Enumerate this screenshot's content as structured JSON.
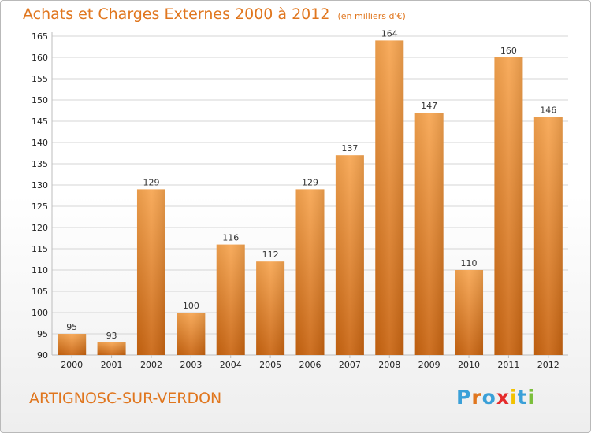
{
  "header": {
    "title": "Achats et Charges Externes 2000 à 2012",
    "subtitle": "(en milliers d'€)"
  },
  "footer": {
    "place": "ARTIGNOSC-SUR-VERDON",
    "logo_text": "Proxiti",
    "logo_colors": [
      "#3aa0d8",
      "#e0761e",
      "#3aa0d8",
      "#e52b2b",
      "#f2c200",
      "#3aa0d8",
      "#7bbf3b"
    ]
  },
  "colors": {
    "bar_top": "#f7a550",
    "bar_bottom": "#c96410",
    "accent": "#e0761e"
  },
  "chart_data": {
    "type": "bar",
    "title": "Achats et Charges Externes 2000 à 2012",
    "subtitle": "(en milliers d'€)",
    "categories": [
      "2000",
      "2001",
      "2002",
      "2003",
      "2004",
      "2005",
      "2006",
      "2007",
      "2008",
      "2009",
      "2010",
      "2011",
      "2012"
    ],
    "values": [
      95,
      93,
      129,
      100,
      116,
      112,
      129,
      137,
      164,
      147,
      110,
      160,
      146
    ],
    "ylim": [
      90,
      165
    ],
    "yticks": [
      90,
      95,
      100,
      105,
      110,
      115,
      120,
      125,
      130,
      135,
      140,
      145,
      150,
      155,
      160,
      165
    ],
    "grid": "horizontal"
  }
}
